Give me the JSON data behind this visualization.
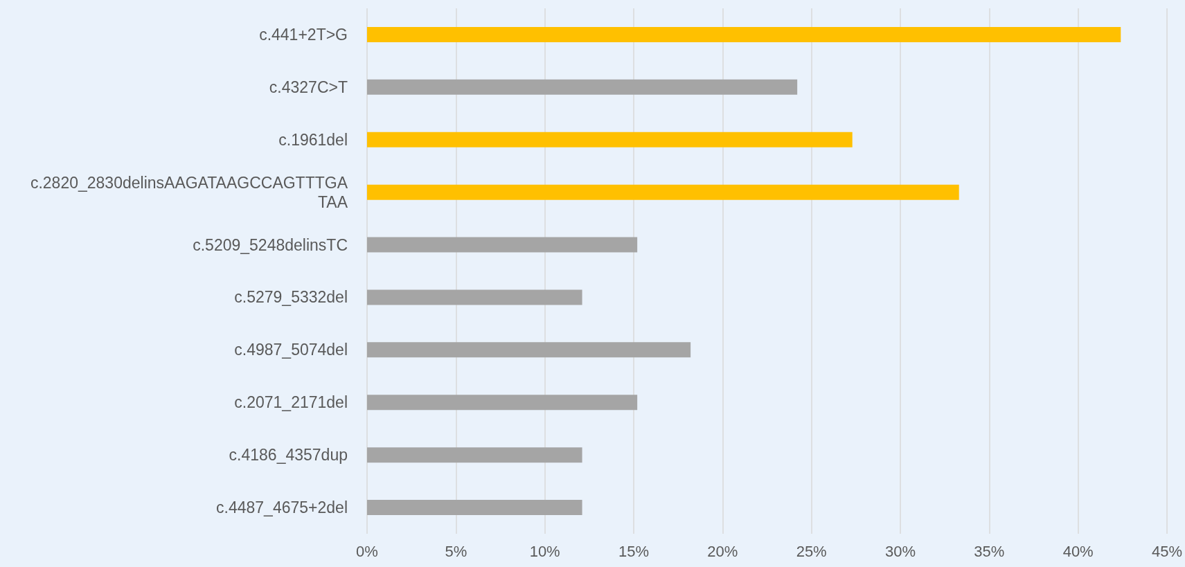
{
  "chart_data": {
    "type": "bar",
    "orientation": "horizontal",
    "categories": [
      "c.441+2T>G",
      "c.4327C>T",
      "c.1961del",
      "c.2820_2830delinsAAGATAAGCCAGTTTGATAA",
      "c.5209_5248delinsTC",
      "c.5279_5332del",
      "c.4987_5074del",
      "c.2071_2171del",
      "c.4186_4357dup",
      "c.4487_4675+2del"
    ],
    "values": [
      42.4,
      24.2,
      27.3,
      33.3,
      15.2,
      12.1,
      18.2,
      15.2,
      12.1,
      12.1
    ],
    "colors": [
      "#ffc000",
      "#a5a5a5",
      "#ffc000",
      "#ffc000",
      "#a5a5a5",
      "#a5a5a5",
      "#a5a5a5",
      "#a5a5a5",
      "#a5a5a5",
      "#a5a5a5"
    ],
    "xlim": [
      0,
      45
    ],
    "xticks": [
      {
        "value": 0,
        "label": "0%"
      },
      {
        "value": 5,
        "label": "5%"
      },
      {
        "value": 10,
        "label": "10%"
      },
      {
        "value": 15,
        "label": "15%"
      },
      {
        "value": 20,
        "label": "20%"
      },
      {
        "value": 25,
        "label": "25%"
      },
      {
        "value": 30,
        "label": "30%"
      },
      {
        "value": 35,
        "label": "35%"
      },
      {
        "value": 40,
        "label": "40%"
      },
      {
        "value": 45,
        "label": "45%"
      }
    ],
    "grid": "x"
  }
}
